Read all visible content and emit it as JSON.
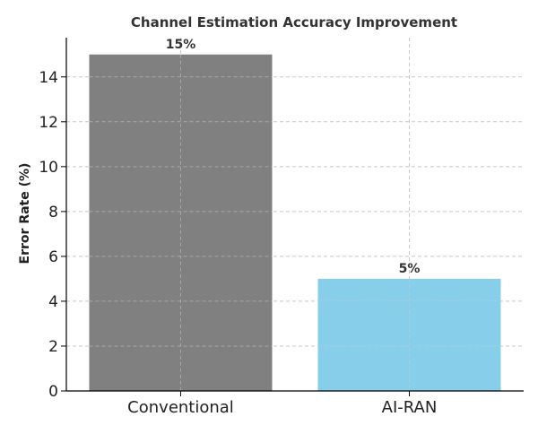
{
  "chart_data": {
    "type": "bar",
    "title": "Channel Estimation Accuracy Improvement",
    "xlabel": "",
    "ylabel": "Error Rate (%)",
    "categories": [
      "Conventional",
      "AI-RAN"
    ],
    "values": [
      15,
      5
    ],
    "data_labels": [
      "15%",
      "5%"
    ],
    "colors": [
      "#808080",
      "#87ceeb"
    ],
    "ylim": [
      0,
      15.75
    ],
    "yticks": [
      0,
      2,
      4,
      6,
      8,
      10,
      12,
      14
    ],
    "grid": true,
    "legend": "none"
  }
}
